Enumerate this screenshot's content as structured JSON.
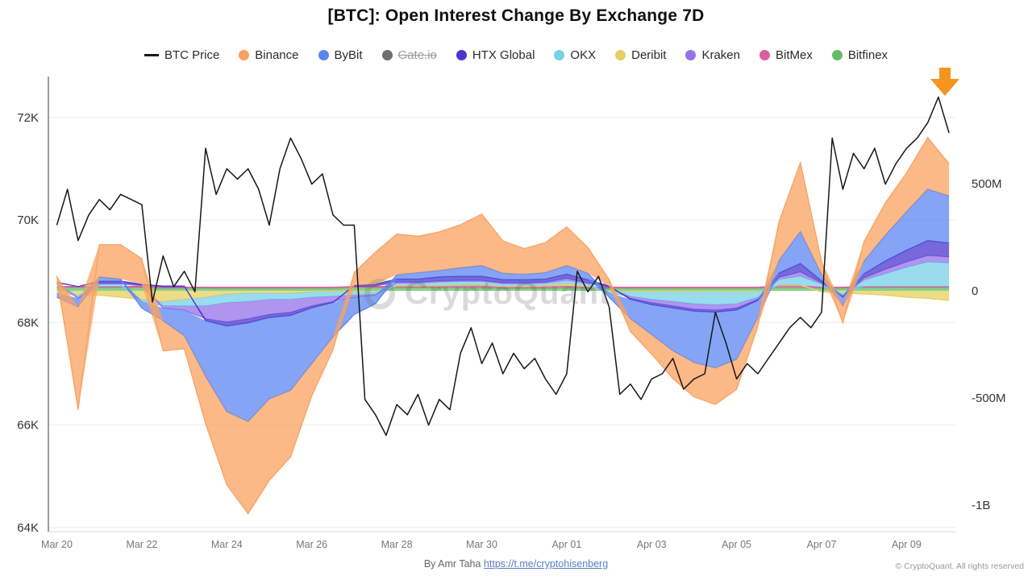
{
  "title": "[BTC]: Open Interest Change By Exchange 7D",
  "watermark": {
    "text": "CryptoQuant"
  },
  "footer": {
    "byline_prefix": "By Amr Taha ",
    "byline_link": "https://t.me/cryptohisenberg",
    "copyright": "© CryptoQuant. All rights reserved"
  },
  "annotations": {
    "arrow_color": "#F7941E"
  },
  "legend": {
    "items": [
      {
        "id": "btc-price",
        "label": "BTC Price",
        "color": "#17171c",
        "type": "line",
        "disabled": false
      },
      {
        "id": "binance",
        "label": "Binance",
        "color": "#F9A160",
        "type": "dot",
        "disabled": false
      },
      {
        "id": "bybit",
        "label": "ByBit",
        "color": "#5C85F2",
        "type": "dot",
        "disabled": false
      },
      {
        "id": "gateio",
        "label": "Gate.io",
        "color": "#6e6e6e",
        "type": "dot",
        "disabled": true
      },
      {
        "id": "htx-global",
        "label": "HTX Global",
        "color": "#4A36CF",
        "type": "dot",
        "disabled": false
      },
      {
        "id": "okx",
        "label": "OKX",
        "color": "#75D0E8",
        "type": "dot",
        "disabled": false
      },
      {
        "id": "deribit",
        "label": "Deribit",
        "color": "#E6D060",
        "type": "dot",
        "disabled": false
      },
      {
        "id": "kraken",
        "label": "Kraken",
        "color": "#9672EA",
        "type": "dot",
        "disabled": false
      },
      {
        "id": "bitmex",
        "label": "BitMex",
        "color": "#DD5CA2",
        "type": "dot",
        "disabled": false
      },
      {
        "id": "bitfinex",
        "label": "Bitfinex",
        "color": "#66BD66",
        "type": "dot",
        "disabled": false
      }
    ]
  },
  "chart_data": {
    "type": "area",
    "title": "[BTC]: Open Interest Change By Exchange 7D",
    "x_unit": "days since Mar 20",
    "x_range": [
      -0.2,
      21.15
    ],
    "x_ticks": [
      [
        0,
        "Mar 20"
      ],
      [
        2,
        "Mar 22"
      ],
      [
        4,
        "Mar 24"
      ],
      [
        6,
        "Mar 26"
      ],
      [
        8,
        "Mar 28"
      ],
      [
        10,
        "Mar 30"
      ],
      [
        12,
        "Apr 01"
      ],
      [
        14,
        "Apr 03"
      ],
      [
        16,
        "Apr 05"
      ],
      [
        18,
        "Apr 07"
      ],
      [
        20,
        "Apr 09"
      ]
    ],
    "price_axis": {
      "side": "left",
      "unit": "USD thousands",
      "min": 63.92,
      "max": 72.8,
      "ticks": [
        [
          72,
          "72K"
        ],
        [
          70,
          "70K"
        ],
        [
          68,
          "68K"
        ],
        [
          66,
          "66K"
        ],
        [
          64,
          "64K"
        ]
      ]
    },
    "oi_axis": {
      "side": "right",
      "unit": "USD millions",
      "min": -1124,
      "max": 1000,
      "ticks": [
        [
          500,
          "500M"
        ],
        [
          0,
          "0"
        ],
        [
          -500,
          "-500M"
        ],
        [
          -1000,
          "-1B"
        ]
      ]
    },
    "price_line": {
      "id": "btc-price",
      "name": "BTC Price",
      "color": "#17171c",
      "x_start": 0,
      "x_step": 0.25,
      "values_k": [
        69.9,
        70.6,
        69.6,
        70.1,
        70.4,
        70.2,
        70.5,
        70.4,
        70.3,
        68.4,
        69.3,
        68.7,
        69.0,
        68.6,
        71.4,
        70.5,
        71.0,
        70.8,
        71.0,
        70.6,
        69.9,
        71.0,
        71.6,
        71.2,
        70.7,
        70.9,
        70.1,
        69.9,
        69.9,
        66.5,
        66.2,
        65.8,
        66.4,
        66.2,
        66.6,
        66.0,
        66.5,
        66.3,
        67.4,
        67.9,
        67.2,
        67.6,
        67.0,
        67.4,
        67.1,
        67.3,
        66.9,
        66.6,
        67.0,
        69.0,
        68.6,
        68.9,
        68.3,
        66.6,
        66.8,
        66.5,
        66.9,
        67.0,
        67.3,
        66.7,
        66.9,
        67.0,
        68.2,
        67.6,
        66.9,
        67.2,
        67.0,
        67.3,
        67.6,
        67.9,
        68.1,
        67.9,
        68.2,
        71.6,
        70.6,
        71.3,
        71.0,
        71.4,
        70.7,
        71.1,
        71.4,
        71.6,
        71.9,
        72.4,
        71.7
      ]
    },
    "oi_series": {
      "x_start": 0,
      "x_step": 0.5,
      "stack_order": [
        "bitfinex",
        "bitmex",
        "deribit",
        "okx",
        "kraken",
        "htx-global",
        "bybit",
        "binance"
      ],
      "series": [
        {
          "id": "binance",
          "name": "Binance",
          "color": "#F9A160",
          "values_m": [
            30,
            -480,
            150,
            160,
            120,
            -140,
            -60,
            -220,
            -340,
            -430,
            -380,
            -310,
            -150,
            -60,
            60,
            150,
            190,
            170,
            180,
            200,
            240,
            150,
            120,
            140,
            180,
            120,
            30,
            -60,
            -90,
            -130,
            -160,
            -170,
            -140,
            -40,
            180,
            320,
            60,
            -80,
            90,
            150,
            180,
            240,
            150
          ]
        },
        {
          "id": "bybit",
          "name": "ByBit",
          "color": "#5C85F2",
          "values_m": [
            -20,
            -40,
            20,
            10,
            -30,
            -60,
            -120,
            -260,
            -400,
            -460,
            -380,
            -350,
            -260,
            -160,
            -80,
            -40,
            20,
            30,
            30,
            40,
            50,
            30,
            25,
            30,
            40,
            30,
            -20,
            -90,
            -140,
            -200,
            -240,
            -260,
            -230,
            -80,
            60,
            150,
            30,
            -40,
            60,
            120,
            180,
            240,
            220
          ]
        },
        {
          "id": "htx-global",
          "name": "HTX Global",
          "color": "#4A36CF",
          "values_m": [
            5,
            0,
            10,
            10,
            5,
            5,
            5,
            -10,
            -20,
            -20,
            -15,
            -15,
            -10,
            -5,
            5,
            10,
            15,
            15,
            20,
            20,
            20,
            15,
            15,
            15,
            20,
            15,
            5,
            -5,
            -10,
            -10,
            -10,
            -10,
            -10,
            -5,
            20,
            40,
            10,
            -5,
            20,
            40,
            55,
            70,
            65
          ]
        },
        {
          "id": "okx",
          "name": "OKX",
          "color": "#75D0E8",
          "values_m": [
            10,
            -10,
            10,
            10,
            -10,
            -20,
            -30,
            -40,
            -40,
            -40,
            -30,
            -30,
            -25,
            -20,
            -15,
            -10,
            10,
            10,
            15,
            15,
            15,
            10,
            10,
            10,
            15,
            10,
            -5,
            -20,
            -35,
            -45,
            -55,
            -60,
            -55,
            -25,
            25,
            40,
            15,
            -10,
            30,
            60,
            90,
            115,
            110
          ]
        },
        {
          "id": "deribit",
          "name": "Deribit",
          "color": "#E6D060",
          "values_m": [
            -10,
            -20,
            -20,
            -30,
            -40,
            -50,
            -40,
            -30,
            -15,
            -10,
            -10,
            -10,
            -5,
            -5,
            -5,
            -5,
            5,
            5,
            5,
            5,
            5,
            5,
            5,
            5,
            10,
            5,
            -5,
            -5,
            -5,
            -5,
            -5,
            -5,
            -5,
            -5,
            5,
            5,
            -5,
            -10,
            -15,
            -20,
            -30,
            -35,
            -45
          ]
        },
        {
          "id": "kraken",
          "name": "Kraken",
          "color": "#9672EA",
          "values_m": [
            5,
            -5,
            5,
            5,
            5,
            -10,
            -20,
            -60,
            -90,
            -80,
            -70,
            -60,
            -40,
            -25,
            -10,
            -5,
            5,
            5,
            5,
            5,
            5,
            5,
            5,
            5,
            10,
            5,
            0,
            -10,
            -15,
            -20,
            -25,
            -25,
            -20,
            -10,
            10,
            20,
            5,
            -5,
            10,
            20,
            25,
            30,
            28
          ]
        },
        {
          "id": "bitmex",
          "name": "BitMex",
          "color": "#DD5CA2",
          "values_m": [
            5,
            5,
            5,
            5,
            5,
            5,
            5,
            5,
            5,
            5,
            5,
            5,
            5,
            5,
            5,
            5,
            5,
            5,
            5,
            8,
            8,
            5,
            5,
            8,
            8,
            5,
            5,
            5,
            5,
            5,
            5,
            5,
            5,
            5,
            8,
            8,
            5,
            5,
            5,
            5,
            5,
            5,
            5
          ]
        },
        {
          "id": "bitfinex",
          "name": "Bitfinex",
          "color": "#66BD66",
          "values_m": [
            15,
            15,
            15,
            15,
            15,
            12,
            12,
            12,
            12,
            12,
            12,
            12,
            12,
            12,
            15,
            15,
            15,
            15,
            15,
            15,
            15,
            12,
            12,
            12,
            15,
            12,
            12,
            12,
            12,
            12,
            12,
            12,
            12,
            12,
            15,
            15,
            12,
            12,
            15,
            15,
            15,
            15,
            15
          ]
        }
      ]
    }
  }
}
